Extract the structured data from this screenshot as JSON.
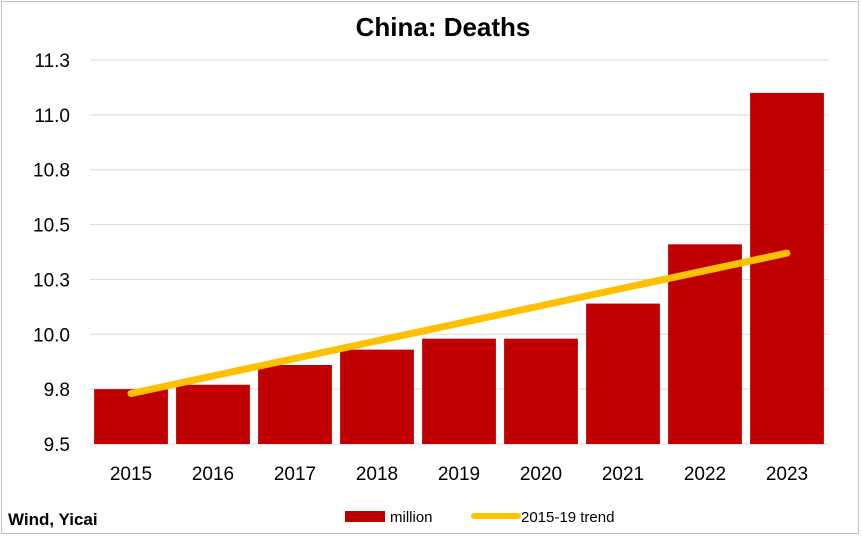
{
  "chart_data": {
    "type": "bar",
    "title": "China: Deaths",
    "xlabel": "",
    "ylabel": "",
    "categories": [
      "2015",
      "2016",
      "2017",
      "2018",
      "2019",
      "2020",
      "2021",
      "2022",
      "2023"
    ],
    "series": [
      {
        "name": "million",
        "type": "bar",
        "color": "#c00000",
        "values": [
          9.75,
          9.77,
          9.86,
          9.93,
          9.98,
          9.98,
          10.14,
          10.41,
          11.1
        ]
      },
      {
        "name": "2015-19 trend",
        "type": "line",
        "color": "#ffc000",
        "values": [
          9.73,
          9.81,
          9.89,
          9.97,
          10.05,
          10.13,
          10.21,
          10.29,
          10.37
        ]
      }
    ],
    "ylim": [
      9.5,
      11.25
    ],
    "yticks": [
      {
        "value": 9.5,
        "label": "9.5"
      },
      {
        "value": 9.75,
        "label": "9.8"
      },
      {
        "value": 10.0,
        "label": "10.0"
      },
      {
        "value": 10.25,
        "label": "10.3"
      },
      {
        "value": 10.5,
        "label": "10.5"
      },
      {
        "value": 10.75,
        "label": "10.8"
      },
      {
        "value": 11.0,
        "label": "11.0"
      },
      {
        "value": 11.25,
        "label": "11.3"
      }
    ],
    "grid": true,
    "legend": "bottom",
    "source": "Wind, Yicai"
  }
}
